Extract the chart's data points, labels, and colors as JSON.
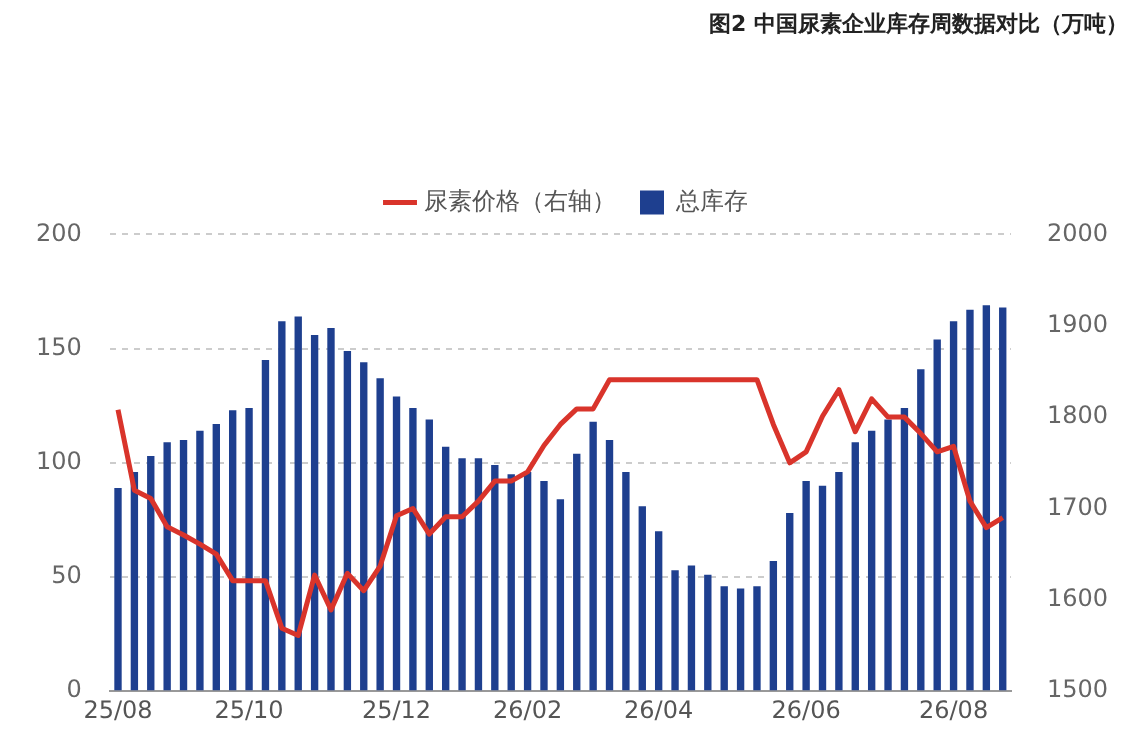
{
  "chart_data": {
    "type": "bar",
    "title": "图2 中国尿素企业库存周数据对比（万吨）",
    "categories": [
      "25/08",
      null,
      null,
      null,
      null,
      null,
      null,
      null,
      "25/10",
      null,
      null,
      null,
      null,
      null,
      null,
      null,
      null,
      "25/12",
      null,
      null,
      null,
      null,
      null,
      null,
      null,
      "26/02",
      null,
      null,
      null,
      null,
      null,
      null,
      null,
      "26/04",
      null,
      null,
      null,
      null,
      null,
      null,
      null,
      null,
      "26/06",
      null,
      null,
      null,
      null,
      null,
      null,
      null,
      null,
      "26/08",
      null,
      null,
      null
    ],
    "series": [
      {
        "name": "总库存",
        "color": "#1e3f8f",
        "values": [
          89,
          96,
          103,
          109,
          110,
          114,
          117,
          123,
          124,
          145,
          162,
          164,
          156,
          159,
          149,
          144,
          137,
          129,
          124,
          119,
          107,
          102,
          102,
          99,
          95,
          96,
          92,
          84,
          104,
          118,
          110,
          96,
          81,
          70,
          53,
          55,
          51,
          46,
          45,
          46,
          57,
          78,
          92,
          90,
          96,
          109,
          114,
          119,
          124,
          141,
          154,
          162,
          167,
          169,
          168
        ]
      },
      {
        "name": "尿素价格（右轴）",
        "type": "line",
        "axis": "y2",
        "color": "#d9342b",
        "values": [
          1808,
          1720,
          1711,
          1680,
          1671,
          1661,
          1650,
          1621,
          1621,
          1621,
          1569,
          1561,
          1627,
          1589,
          1629,
          1610,
          1637,
          1692,
          1700,
          1672,
          1691,
          1691,
          1708,
          1730,
          1730,
          1740,
          1769,
          1792,
          1809,
          1809,
          1841,
          1841,
          1841,
          1841,
          1841,
          1841,
          1841,
          1841,
          1841,
          1841,
          1792,
          1750,
          1762,
          1801,
          1830,
          1784,
          1820,
          1800,
          1800,
          1782,
          1762,
          1768,
          1708,
          1679,
          1690
        ]
      }
    ],
    "ylim": [
      0,
      200
    ],
    "yticks": [
      0,
      50,
      100,
      150,
      200
    ],
    "y2lim": [
      1500,
      2000
    ],
    "y2ticks": [
      1500,
      1600,
      1700,
      1800,
      1900,
      2000
    ],
    "grid": "y",
    "legend": "top",
    "marker": "none"
  }
}
